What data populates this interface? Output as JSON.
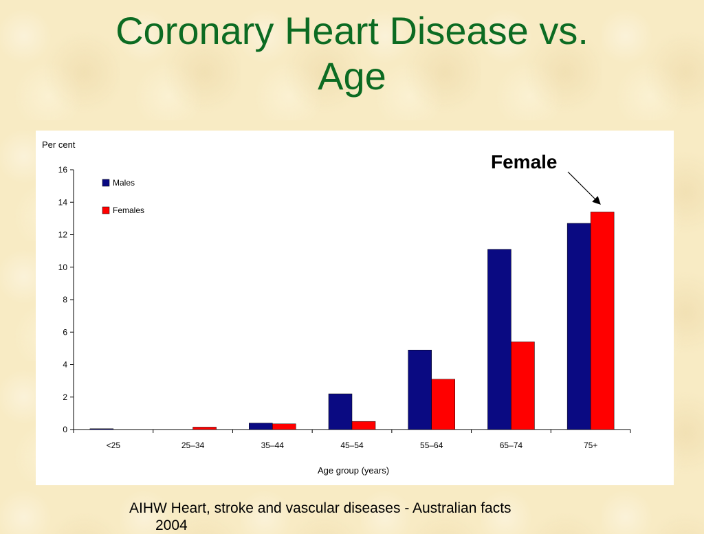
{
  "slide": {
    "title_line1": "Coronary Heart Disease vs.",
    "title_line2": "Age",
    "source_line1": "AIHW Heart, stroke and vascular diseases - Australian facts",
    "source_line2": "2004"
  },
  "annotation": {
    "label": "Female",
    "points_to": "Females 75+"
  },
  "chart_data": {
    "type": "bar",
    "title": "",
    "xlabel": "Age group (years)",
    "ylabel": "Per cent",
    "ylim": [
      0,
      16
    ],
    "yticks": [
      0,
      2,
      4,
      6,
      8,
      10,
      12,
      14,
      16
    ],
    "categories": [
      "<25",
      "25–34",
      "35–44",
      "45–54",
      "55–64",
      "65–74",
      "75+"
    ],
    "series": [
      {
        "name": "Males",
        "color": "#0a0a82",
        "values": [
          0.05,
          0.0,
          0.4,
          2.2,
          4.9,
          11.1,
          12.7
        ]
      },
      {
        "name": "Females",
        "color": "#ff0000",
        "values": [
          0.0,
          0.15,
          0.35,
          0.5,
          3.1,
          5.4,
          13.4
        ]
      }
    ],
    "legend_position": "top-left",
    "grid": false
  }
}
